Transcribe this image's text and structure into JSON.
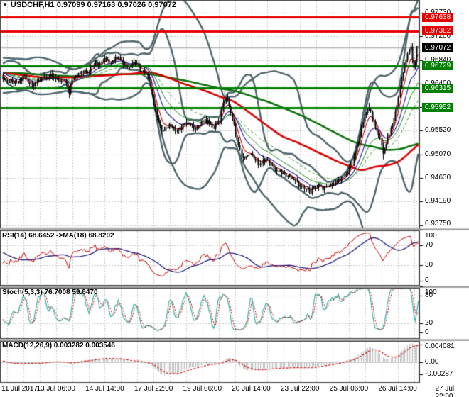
{
  "window": {
    "title": "USDCHF,H1  0.97099 0.97163 0.97026 0.97072",
    "symbol": "USDCHF",
    "period": "H1"
  },
  "icons": {
    "symbol_dropdown": "▼"
  },
  "colors": {
    "background": "#ffffff",
    "grid": "#c9c9c9",
    "frame": "#404040",
    "separator": "#9c9c9c",
    "bar": "#000000",
    "band": "#4d656c",
    "ma_fast_red": "#cc0000",
    "ma_blue": "#2323a6",
    "ma_green_solid": "#128912",
    "ma_green_dash": "#2f9b2f",
    "ma_slow_red": "#e10000",
    "ma_slow_green": "#0c720c",
    "level_resistance": "#e60000",
    "level_support": "#008000",
    "current_badge": "#000000",
    "current_line": "#b4b4b4",
    "rsi_main": "#d10000",
    "rsi_signal": "#1c1c80",
    "stoch_k": "#36b3aa",
    "stoch_d": "#d10000",
    "macd_hist": "#bdbdbd",
    "macd_signal": "#d10000",
    "badge_text": "#ffffff"
  },
  "chart_data": [
    {
      "type": "candlestick",
      "pane": "main",
      "title": "USDCHF,H1",
      "ohlc_last": {
        "open": 0.97099,
        "high": 0.97163,
        "low": 0.97026,
        "close": 0.97072
      },
      "x_tick_labels": [
        "11 Jul 2017",
        "13 Jul 06:00",
        "14 Jul 14:00",
        "17 Jul 22:00",
        "19 Jul 06:00",
        "20 Jul 14:00",
        "23 Jul 22:00",
        "25 Jul 06:00",
        "26 Jul 14:00",
        "27 Jul 22:00"
      ],
      "y_ticks": [
        0.9773,
        0.9728,
        0.9684,
        0.964,
        0.9596,
        0.9552,
        0.9507,
        0.9463,
        0.9419,
        0.9375
      ],
      "y_range": [
        0.9369,
        0.97962
      ],
      "levels": [
        {
          "price": 0.97638,
          "kind": "resistance"
        },
        {
          "price": 0.97382,
          "kind": "resistance"
        },
        {
          "price": 0.97072,
          "kind": "current"
        },
        {
          "price": 0.96729,
          "kind": "support"
        },
        {
          "price": 0.96315,
          "kind": "support"
        },
        {
          "price": 0.95952,
          "kind": "support"
        }
      ],
      "bars_visible": 271,
      "price_path": [
        [
          0,
          0.965
        ],
        [
          8,
          0.9641
        ],
        [
          14,
          0.9653
        ],
        [
          20,
          0.9634
        ],
        [
          24,
          0.9648
        ],
        [
          30,
          0.9656
        ],
        [
          36,
          0.9647
        ],
        [
          41,
          0.9638
        ],
        [
          43,
          0.9625
        ],
        [
          45,
          0.9648
        ],
        [
          50,
          0.9658
        ],
        [
          56,
          0.9664
        ],
        [
          60,
          0.968
        ],
        [
          63,
          0.9672
        ],
        [
          66,
          0.9689
        ],
        [
          70,
          0.9678
        ],
        [
          75,
          0.969
        ],
        [
          80,
          0.967
        ],
        [
          85,
          0.9682
        ],
        [
          90,
          0.9663
        ],
        [
          94,
          0.9655
        ],
        [
          97,
          0.962
        ],
        [
          100,
          0.9572
        ],
        [
          103,
          0.9552
        ],
        [
          108,
          0.9562
        ],
        [
          113,
          0.9549
        ],
        [
          119,
          0.9568
        ],
        [
          125,
          0.9556
        ],
        [
          131,
          0.9572
        ],
        [
          137,
          0.9559
        ],
        [
          141,
          0.9573
        ],
        [
          143,
          0.9605
        ],
        [
          145,
          0.9612
        ],
        [
          147,
          0.9596
        ],
        [
          150,
          0.956
        ],
        [
          153,
          0.9522
        ],
        [
          156,
          0.95
        ],
        [
          161,
          0.9508
        ],
        [
          166,
          0.949
        ],
        [
          171,
          0.9497
        ],
        [
          176,
          0.9483
        ],
        [
          181,
          0.9474
        ],
        [
          186,
          0.9464
        ],
        [
          191,
          0.9452
        ],
        [
          196,
          0.9444
        ],
        [
          200,
          0.9438
        ],
        [
          205,
          0.9452
        ],
        [
          209,
          0.9443
        ],
        [
          214,
          0.9451
        ],
        [
          219,
          0.9462
        ],
        [
          224,
          0.9475
        ],
        [
          228,
          0.95
        ],
        [
          232,
          0.9545
        ],
        [
          235,
          0.958
        ],
        [
          238,
          0.9594
        ],
        [
          240,
          0.9575
        ],
        [
          242,
          0.9556
        ],
        [
          244,
          0.9542
        ],
        [
          246,
          0.9528
        ],
        [
          247,
          0.9512
        ],
        [
          249,
          0.953
        ],
        [
          251,
          0.9548
        ],
        [
          253,
          0.9562
        ],
        [
          255,
          0.9588
        ],
        [
          257,
          0.9612
        ],
        [
          259,
          0.9648
        ],
        [
          261,
          0.967
        ],
        [
          263,
          0.9695
        ],
        [
          264,
          0.9706
        ],
        [
          265,
          0.9712
        ],
        [
          266,
          0.9688
        ],
        [
          267,
          0.9672
        ],
        [
          268,
          0.9684
        ],
        [
          269,
          0.9698
        ],
        [
          270,
          0.97072
        ]
      ],
      "wicks": [
        [
          43,
          0.9613
        ],
        [
          144,
          0.9628
        ],
        [
          238,
          0.9604
        ],
        [
          247,
          0.9498
        ],
        [
          265,
          0.97163
        ]
      ],
      "overlays": {
        "bollinger": [
          {
            "period": 48,
            "dev": 3.1
          },
          {
            "period": 20,
            "dev": 2.5
          }
        ],
        "moving_averages": [
          {
            "period": 6,
            "style": "thin-red"
          },
          {
            "period": 14,
            "style": "thin-blue"
          },
          {
            "period": 24,
            "style": "thin-green"
          },
          {
            "period": 40,
            "style": "thin-green-dashed"
          },
          {
            "period": 84,
            "style": "thick-red"
          },
          {
            "period": 150,
            "style": "thick-green"
          }
        ]
      }
    },
    {
      "type": "line",
      "pane": "rsi",
      "label": "RSI(14) 68.6452  ->MA(18) 68.8202",
      "values": {
        "rsi": 68.6452,
        "ma": 68.8202
      },
      "periods": {
        "rsi": 14,
        "ma": 18
      },
      "y_ticks": [
        100,
        70,
        30,
        0
      ],
      "level_lines": [
        70,
        30
      ],
      "ylim": [
        0,
        100
      ]
    },
    {
      "type": "line",
      "pane": "stochastic",
      "label": "Stoch(5,3,3) 76.7008 59.8470",
      "values": {
        "k": 76.7008,
        "d": 59.847
      },
      "y_ticks": [
        100,
        80,
        20,
        0
      ],
      "level_lines": [
        80,
        20
      ],
      "ylim": [
        0,
        100
      ]
    },
    {
      "type": "histogram+line",
      "pane": "macd",
      "label": "MACD(12,26,9) 0.003282 0.003546",
      "values": {
        "macd": 0.003282,
        "signal": 0.003546
      },
      "y_tick_labels": [
        "0.004081",
        "0.00",
        "-0.00287"
      ],
      "y_tick_values": [
        0.004081,
        0,
        -0.00287
      ]
    }
  ]
}
